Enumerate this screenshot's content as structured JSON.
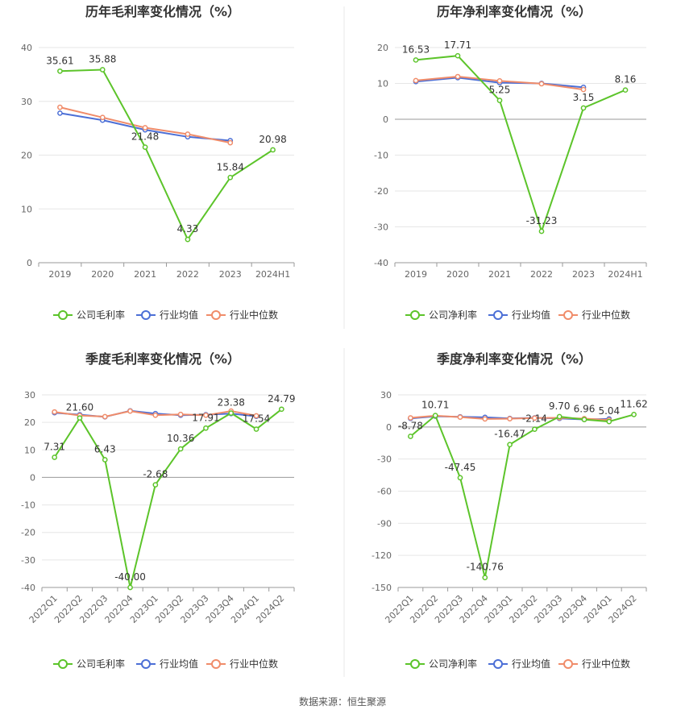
{
  "footer": {
    "source": "数据来源：恒生聚源"
  },
  "colors": {
    "company": "#5cc42a",
    "avg": "#4c6fd6",
    "median": "#f08c6a",
    "grid": "#e6e6e6",
    "axis": "#666666",
    "divider": "#e8e8e8"
  },
  "chart_data": [
    {
      "id": "annual-gross",
      "type": "line",
      "title": "历年毛利率变化情况（%）",
      "categories": [
        "2019",
        "2020",
        "2021",
        "2022",
        "2023",
        "2024H1"
      ],
      "ylim": [
        0,
        40
      ],
      "yticks": [
        0,
        10,
        20,
        30,
        40
      ],
      "grid": true,
      "legend_position": "bottom",
      "series": [
        {
          "name": "公司毛利率",
          "role": "company",
          "values": [
            35.61,
            35.88,
            21.48,
            4.33,
            15.84,
            20.98
          ],
          "labels": [
            "35.61",
            "35.88",
            "21.48",
            "4.33",
            "15.84",
            "20.98"
          ]
        },
        {
          "name": "行业均值",
          "role": "avg",
          "values": [
            27.8,
            26.5,
            24.7,
            23.4,
            22.7,
            null
          ]
        },
        {
          "name": "行业中位数",
          "role": "median",
          "values": [
            28.9,
            27.0,
            25.1,
            23.9,
            22.3,
            null
          ]
        }
      ]
    },
    {
      "id": "annual-net",
      "type": "line",
      "title": "历年净利率变化情况（%）",
      "categories": [
        "2019",
        "2020",
        "2021",
        "2022",
        "2023",
        "2024H1"
      ],
      "ylim": [
        -40,
        20
      ],
      "yticks": [
        -40,
        -30,
        -20,
        -10,
        0,
        10,
        20
      ],
      "grid": true,
      "legend_position": "bottom",
      "series": [
        {
          "name": "公司净利率",
          "role": "company",
          "values": [
            16.53,
            17.71,
            5.25,
            -31.23,
            3.15,
            8.16
          ],
          "labels": [
            "16.53",
            "17.71",
            "5.25",
            "-31.23",
            "3.15",
            "8.16"
          ]
        },
        {
          "name": "行业均值",
          "role": "avg",
          "values": [
            10.5,
            11.6,
            10.2,
            10.0,
            8.9,
            null
          ]
        },
        {
          "name": "行业中位数",
          "role": "median",
          "values": [
            10.8,
            11.9,
            10.7,
            9.9,
            8.3,
            null
          ]
        }
      ]
    },
    {
      "id": "quarterly-gross",
      "type": "line",
      "title": "季度毛利率变化情况（%）",
      "categories": [
        "2022Q1",
        "2022Q2",
        "2022Q3",
        "2022Q4",
        "2023Q1",
        "2023Q2",
        "2023Q3",
        "2023Q4",
        "2024Q1",
        "2024Q2"
      ],
      "ylim": [
        -40,
        30
      ],
      "yticks": [
        -40,
        -30,
        -20,
        -10,
        0,
        10,
        20,
        30
      ],
      "grid": true,
      "legend_position": "bottom",
      "series": [
        {
          "name": "公司毛利率",
          "role": "company",
          "values": [
            7.31,
            21.6,
            6.43,
            -40.0,
            -2.68,
            10.36,
            17.91,
            23.38,
            17.54,
            24.79
          ],
          "labels": [
            "7.31",
            "21.60",
            "6.43",
            "-40.00",
            "-2.68",
            "10.36",
            "17.91",
            "23.38",
            "17.54",
            "24.79"
          ]
        },
        {
          "name": "行业均值",
          "role": "avg",
          "values": [
            23.5,
            22.8,
            22.0,
            24.2,
            23.2,
            22.6,
            22.8,
            23.2,
            22.2,
            null
          ]
        },
        {
          "name": "行业中位数",
          "role": "median",
          "values": [
            23.8,
            22.5,
            22.1,
            24.1,
            22.6,
            22.9,
            22.6,
            24.1,
            22.4,
            null
          ]
        }
      ]
    },
    {
      "id": "quarterly-net",
      "type": "line",
      "title": "季度净利率变化情况（%）",
      "categories": [
        "2022Q1",
        "2022Q2",
        "2022Q3",
        "2022Q4",
        "2023Q1",
        "2023Q2",
        "2023Q3",
        "2023Q4",
        "2024Q1",
        "2024Q2"
      ],
      "ylim": [
        -150,
        30
      ],
      "yticks": [
        -150,
        -120,
        -90,
        -60,
        -30,
        0,
        30
      ],
      "grid": true,
      "legend_position": "bottom",
      "series": [
        {
          "name": "公司净利率",
          "role": "company",
          "values": [
            -8.78,
            10.71,
            -47.45,
            -140.76,
            -16.47,
            -2.14,
            9.7,
            6.96,
            5.04,
            11.62
          ],
          "labels": [
            "-8.78",
            "10.71",
            "-47.45",
            "-140.76",
            "-16.47",
            "-2.14",
            "9.70",
            "6.96",
            "5.04",
            "11.62"
          ]
        },
        {
          "name": "行业均值",
          "role": "avg",
          "values": [
            8.0,
            10.0,
            9.5,
            9.0,
            8.0,
            8.5,
            8.0,
            7.0,
            7.5,
            null
          ]
        },
        {
          "name": "行业中位数",
          "role": "median",
          "values": [
            8.5,
            10.5,
            9.2,
            7.5,
            7.7,
            8.3,
            8.5,
            7.8,
            6.5,
            null
          ]
        }
      ]
    }
  ]
}
